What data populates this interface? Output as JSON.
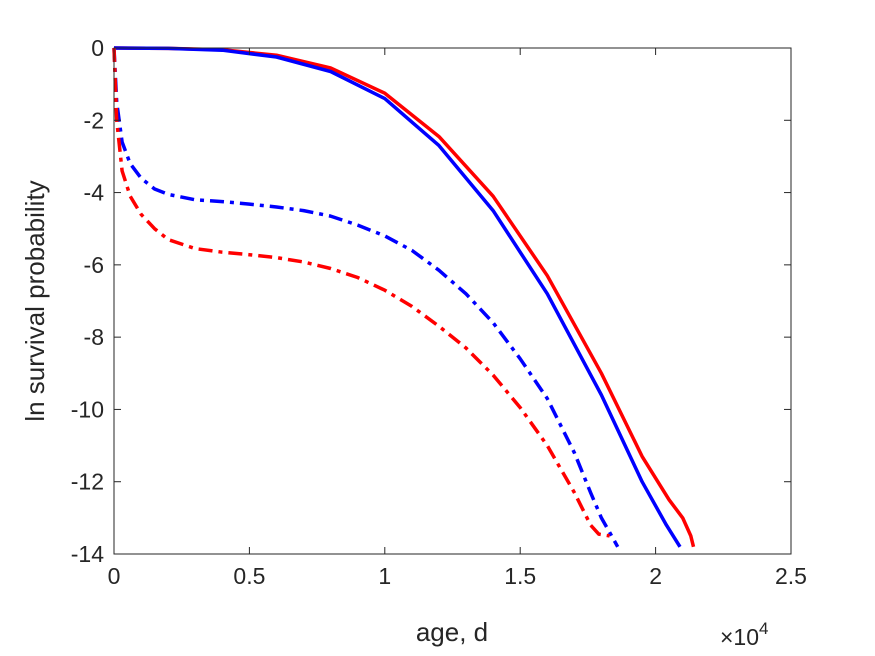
{
  "chart_data": {
    "type": "line",
    "xlabel": "age, d",
    "ylabel": "ln survival probability",
    "x_exponent_label": {
      "base": "×10",
      "power": "4"
    },
    "xlim": [
      0,
      25000
    ],
    "ylim": [
      -14,
      0
    ],
    "x_ticks": [
      0,
      5000,
      10000,
      15000,
      20000,
      25000
    ],
    "x_tick_labels": [
      "0",
      "0.5",
      "1",
      "1.5",
      "2",
      "2.5"
    ],
    "y_ticks": [
      0,
      -2,
      -4,
      -6,
      -8,
      -10,
      -12,
      -14
    ],
    "y_tick_labels": [
      "0",
      "-2",
      "-4",
      "-6",
      "-8",
      "-10",
      "-12",
      "-14"
    ],
    "grid": false,
    "series": [
      {
        "color": "#ff0000",
        "style": "solid",
        "x": [
          0,
          2000,
          4000,
          6000,
          8000,
          10000,
          12000,
          14000,
          16000,
          18000,
          19500,
          20500,
          21000,
          21300,
          21400
        ],
        "y": [
          0,
          -0.01,
          -0.05,
          -0.2,
          -0.55,
          -1.25,
          -2.45,
          -4.1,
          -6.3,
          -9.0,
          -11.3,
          -12.5,
          -13.0,
          -13.5,
          -13.8
        ]
      },
      {
        "color": "#0000ff",
        "style": "solid",
        "x": [
          0,
          2000,
          4000,
          6000,
          8000,
          10000,
          12000,
          14000,
          16000,
          18000,
          19500,
          20400,
          20900
        ],
        "y": [
          0,
          -0.01,
          -0.06,
          -0.25,
          -0.65,
          -1.4,
          -2.7,
          -4.5,
          -6.8,
          -9.6,
          -12.0,
          -13.2,
          -13.8
        ]
      },
      {
        "color": "#0000ff",
        "style": "dashdot",
        "x": [
          0,
          100,
          300,
          600,
          1000,
          1500,
          2000,
          3000,
          4000,
          5000,
          6000,
          7000,
          8000,
          9000,
          10000,
          11000,
          12000,
          13000,
          14000,
          15000,
          16000,
          17000,
          17600,
          18000,
          18300,
          18600
        ],
        "y": [
          0,
          -1.5,
          -2.6,
          -3.2,
          -3.6,
          -3.9,
          -4.05,
          -4.2,
          -4.25,
          -4.32,
          -4.4,
          -4.5,
          -4.65,
          -4.9,
          -5.2,
          -5.6,
          -6.15,
          -6.8,
          -7.6,
          -8.6,
          -9.7,
          -11.2,
          -12.3,
          -13.0,
          -13.4,
          -13.8
        ]
      },
      {
        "color": "#ff0000",
        "style": "dashdot",
        "x": [
          0,
          100,
          300,
          600,
          1000,
          1500,
          2000,
          3000,
          4000,
          5000,
          6000,
          7000,
          8000,
          9000,
          10000,
          11000,
          12000,
          13000,
          14000,
          15000,
          16000,
          17000,
          17600,
          17900,
          18300
        ],
        "y": [
          0,
          -2.0,
          -3.4,
          -4.1,
          -4.6,
          -5.0,
          -5.3,
          -5.55,
          -5.65,
          -5.72,
          -5.8,
          -5.92,
          -6.1,
          -6.35,
          -6.7,
          -7.15,
          -7.7,
          -8.3,
          -9.05,
          -9.95,
          -11.0,
          -12.3,
          -13.2,
          -13.45,
          -13.5
        ]
      }
    ]
  }
}
